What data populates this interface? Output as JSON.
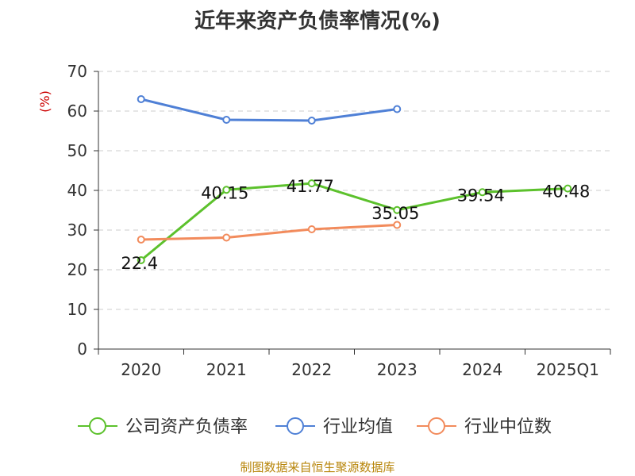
{
  "chart_data": {
    "type": "line",
    "title": "近年来资产负债率情况(%)",
    "ylabel": "(%)",
    "xlabel": "",
    "ylim": [
      0,
      70
    ],
    "yticks": [
      0,
      10,
      20,
      30,
      40,
      50,
      60,
      70
    ],
    "categories": [
      "2020",
      "2021",
      "2022",
      "2023",
      "2024",
      "2025Q1"
    ],
    "grid": true,
    "legend_position": "bottom",
    "series": [
      {
        "name": "公司资产负债率",
        "color": "#5cc12c",
        "values": [
          22.4,
          40.15,
          41.77,
          35.05,
          39.54,
          40.48
        ],
        "labels": [
          "22.4",
          "40.15",
          "41.77",
          "35.05",
          "39.54",
          "40.48"
        ]
      },
      {
        "name": "行业均值",
        "color": "#4f80d6",
        "values": [
          63.0,
          57.8,
          57.6,
          60.5,
          null,
          null
        ]
      },
      {
        "name": "行业中位数",
        "color": "#f28b5c",
        "values": [
          27.6,
          28.1,
          30.2,
          31.3,
          null,
          null
        ]
      }
    ]
  },
  "source": "制图数据来自恒生聚源数据库"
}
